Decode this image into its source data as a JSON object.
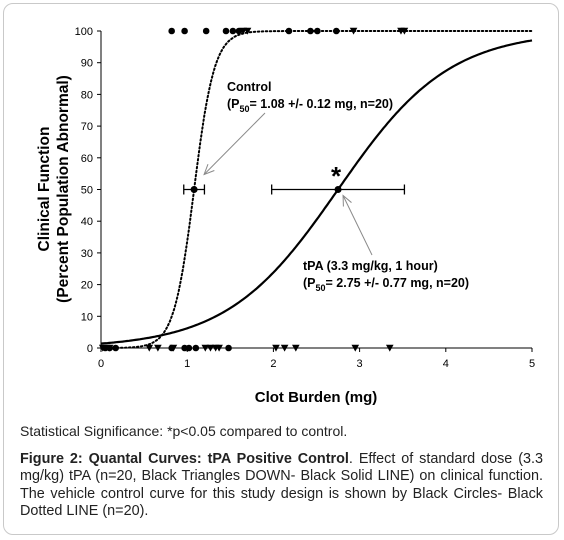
{
  "chart_data": {
    "type": "line",
    "xlabel": "Clot Burden (mg)",
    "ylabel_line1": "Clinical Function",
    "ylabel_line2": "(Percent Population Abnormal)",
    "xlim": [
      0,
      5
    ],
    "ylim": [
      0,
      100
    ],
    "x_ticks": [
      0,
      1,
      2,
      3,
      4,
      5
    ],
    "y_ticks": [
      0,
      10,
      20,
      30,
      40,
      50,
      60,
      70,
      80,
      90,
      100
    ],
    "grid": false,
    "series": [
      {
        "key": "control",
        "line_style": "dotted",
        "marker": "circle",
        "p50": 1.08,
        "p50_error": 0.12,
        "points_at_100": [
          0.82,
          0.97,
          1.22,
          1.45,
          1.53,
          1.6,
          2.18,
          2.43,
          2.51,
          2.73
        ],
        "points_at_0": [
          0.05,
          0.1,
          0.17,
          0.82,
          0.97,
          1.02,
          1.1,
          1.48
        ]
      },
      {
        "key": "tpa",
        "line_style": "solid",
        "marker": "triangle-down",
        "p50": 2.75,
        "p50_error": 0.77,
        "points_at_100": [
          1.65,
          1.7,
          2.93,
          3.48,
          3.52
        ],
        "points_at_0": [
          0.02,
          0.1,
          0.56,
          0.66,
          0.84,
          1.21,
          1.27,
          1.33,
          1.37,
          2.03,
          2.13,
          2.26,
          2.95,
          3.35
        ]
      }
    ],
    "annotations": {
      "control_title": "Control",
      "control_p": "P",
      "control_sub": "50",
      "control_rest": "= 1.08 +/- 0.12 mg, n=20)",
      "control_open": "(",
      "tpa_title": "tPA (3.3 mg/kg, 1 hour)",
      "tpa_open": "(",
      "tpa_p": "P",
      "tpa_sub": "50",
      "tpa_rest": "= 2.75 +/- 0.77 mg, n=20)",
      "significance_star": "*"
    }
  },
  "significance_note": "Statistical Significance: *p<0.05 compared to control.",
  "figure_caption": {
    "label": "Figure 2: Quantal Curves: tPA Positive Control",
    "text": ". Effect of standard dose (3.3 mg/kg) tPA (n=20, Black Triangles DOWN- Black Solid LINE) on clinical function. The vehicle control curve for this study design is shown by Black Circles- Black Dotted LINE (n=20)."
  }
}
